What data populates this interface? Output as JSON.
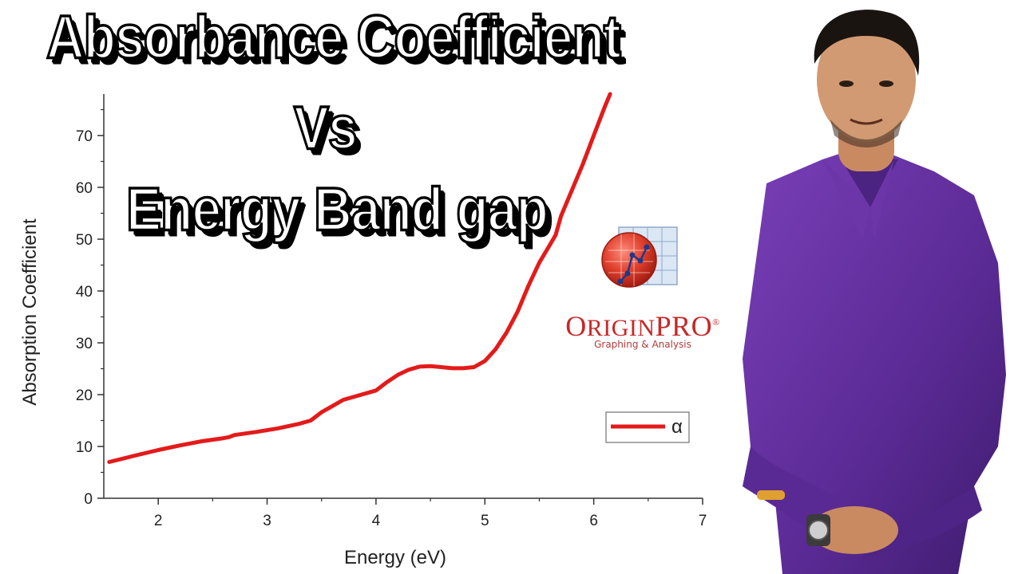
{
  "title": {
    "line1": "Absorbance Coefficient",
    "line2": "Vs",
    "line3": "Energy Band gap"
  },
  "logo": {
    "name_big_o": "O",
    "name_rest": "RIGIN",
    "name_pro": "PRO",
    "registered": "®",
    "tagline": "Graphing & Analysis",
    "icon": "originpro-graph-icon",
    "accent": "#d32f2f"
  },
  "chart_data": {
    "type": "line",
    "xlabel": "Energy (eV)",
    "ylabel": "Absorption Coefficient",
    "xlim": [
      1.5,
      7
    ],
    "ylim": [
      0,
      78
    ],
    "xticks": [
      2,
      3,
      4,
      5,
      6,
      7
    ],
    "yticks": [
      0,
      10,
      20,
      30,
      40,
      50,
      60,
      70
    ],
    "grid": false,
    "legend_position": "right",
    "series": [
      {
        "name": "α",
        "color": "#e31b1b",
        "x": [
          1.55,
          1.8,
          2.0,
          2.2,
          2.4,
          2.6,
          2.65,
          2.7,
          2.9,
          3.1,
          3.3,
          3.4,
          3.5,
          3.6,
          3.7,
          3.8,
          4.0,
          4.05,
          4.1,
          4.2,
          4.3,
          4.4,
          4.5,
          4.6,
          4.7,
          4.8,
          4.9,
          5.0,
          5.1,
          5.2,
          5.3,
          5.4,
          5.5,
          5.6,
          5.65,
          5.7,
          5.8,
          5.9,
          6.0,
          6.1,
          6.15
        ],
        "y": [
          7.0,
          8.3,
          9.3,
          10.2,
          11.0,
          11.6,
          11.8,
          12.2,
          12.8,
          13.5,
          14.4,
          15.0,
          16.6,
          17.8,
          19.0,
          19.6,
          20.8,
          21.6,
          22.4,
          23.8,
          24.8,
          25.4,
          25.5,
          25.3,
          25.1,
          25.1,
          25.3,
          26.5,
          28.8,
          32.0,
          36.0,
          41.0,
          45.5,
          49.0,
          50.8,
          54.5,
          59.5,
          64.5,
          70.0,
          75.5,
          78.0
        ]
      }
    ]
  }
}
